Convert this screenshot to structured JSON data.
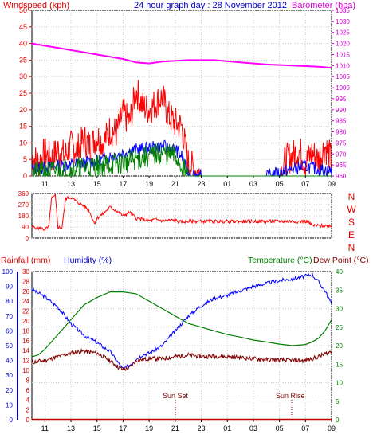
{
  "header": {
    "wind_label": "Windspeed (kph)",
    "title": "24 hour graph day : 28 November 2012",
    "baro_label": "Barometer (hpa)"
  },
  "colors": {
    "wind_axis": "#e00000",
    "baro_axis": "#d000d0",
    "gust": "#ff0000",
    "wind_blue": "#0000ff",
    "wind_green": "#008000",
    "baro_line": "#ff00ff",
    "humidity": "#0000ff",
    "temperature": "#008000",
    "dewpoint": "#800000",
    "rain_axis": "#0000cc"
  },
  "x_ticks": [
    "11",
    "13",
    "15",
    "17",
    "19",
    "21",
    "23",
    "01",
    "03",
    "05",
    "07",
    "09"
  ],
  "direction_labels": [
    "N",
    "W",
    "S",
    "E",
    "N"
  ],
  "bottom_header": {
    "rain_label": "Rainfall (mm)",
    "humidity_label": "Humidity (%)",
    "temp_label": "Temperature (°C)",
    "dew_label": "Dew Point (°C)"
  },
  "annotations": {
    "sunset": "Sun Set",
    "sunrise": "Sun Rise"
  },
  "chart_data": [
    {
      "type": "line",
      "title": "24 hour graph day : 28 November 2012",
      "ylabel": "Windspeed (kph)",
      "ylim": [
        0,
        50
      ],
      "y_ticks": [
        0,
        5,
        10,
        15,
        20,
        25,
        30,
        35,
        40,
        45,
        50
      ],
      "y2label": "Barometer (hpa)",
      "y2lim": [
        960,
        1035
      ],
      "y2_ticks": [
        960,
        965,
        970,
        975,
        980,
        985,
        990,
        995,
        1000,
        1005,
        1010,
        1015,
        1020,
        1025,
        1030,
        1035
      ],
      "x_range_hours": [
        10,
        33
      ],
      "series": [
        {
          "name": "Barometer (hpa)",
          "axis": "y2",
          "x": [
            10,
            11,
            13,
            15,
            17,
            18,
            19,
            20,
            22,
            24,
            26,
            28,
            30,
            32,
            33
          ],
          "values": [
            1020,
            1019,
            1017,
            1015,
            1013,
            1011.5,
            1011,
            1011.8,
            1012.5,
            1012.5,
            1011.5,
            1010.5,
            1010,
            1009.5,
            1009
          ]
        },
        {
          "name": "Gust",
          "axis": "y",
          "x": [
            10,
            10.5,
            11,
            11.5,
            12,
            12.5,
            13,
            13.5,
            14,
            14.5,
            15,
            15.5,
            16,
            16.5,
            17,
            17.5,
            18,
            18.5,
            19,
            19.5,
            20,
            20.5,
            21,
            21.5,
            22,
            23,
            24,
            26,
            28,
            29,
            29.5,
            30,
            30.5,
            31,
            31.5,
            32,
            32.5,
            33
          ],
          "values": [
            6,
            4,
            7,
            5,
            8,
            6,
            9,
            8,
            11,
            9,
            12,
            10,
            14,
            13,
            19,
            16,
            26,
            21,
            20,
            22,
            24,
            18,
            16,
            15,
            4,
            0,
            0,
            0,
            0,
            0,
            5,
            6,
            8,
            4,
            7,
            5,
            9,
            5
          ]
        },
        {
          "name": "Average",
          "axis": "y",
          "x": [
            10,
            11,
            12,
            13,
            14,
            15,
            16,
            17,
            18,
            19,
            20,
            21,
            21.5,
            22,
            23,
            28,
            29,
            30,
            31,
            32,
            33
          ],
          "values": [
            2,
            2.5,
            3,
            3.5,
            4,
            4.5,
            6,
            7,
            8,
            8.5,
            9,
            8,
            6,
            1,
            0,
            0,
            1,
            2,
            3,
            2,
            1.5
          ]
        },
        {
          "name": "Speed",
          "axis": "y",
          "x": [
            10,
            11,
            12,
            13,
            14,
            15,
            16,
            17,
            18,
            19,
            20,
            21,
            21.5,
            22,
            23,
            33
          ],
          "values": [
            1,
            1.2,
            1.5,
            2,
            2.5,
            3,
            3.5,
            4,
            5,
            6,
            7,
            6,
            3,
            0,
            0,
            0
          ]
        }
      ]
    },
    {
      "type": "line",
      "ylabel": "Wind direction",
      "ylim": [
        0,
        360
      ],
      "y_ticks": [
        0,
        45,
        90,
        135,
        180,
        225,
        270,
        315,
        360
      ],
      "x_range_hours": [
        10,
        33
      ],
      "series": [
        {
          "name": "Direction",
          "x": [
            10,
            10.5,
            11,
            11.3,
            11.5,
            11.8,
            12,
            12.3,
            12.6,
            13,
            13.5,
            14,
            14.4,
            14.8,
            15,
            15.5,
            16,
            16.5,
            17,
            17.5,
            18,
            18.5,
            19,
            19.5,
            20,
            21,
            21.3,
            22,
            24,
            26,
            28,
            30,
            31.2,
            31.5,
            32,
            33
          ],
          "values": [
            90,
            80,
            70,
            90,
            320,
            340,
            90,
            80,
            320,
            330,
            290,
            260,
            220,
            120,
            160,
            200,
            250,
            220,
            180,
            210,
            160,
            150,
            140,
            150,
            140,
            145,
            130,
            135,
            135,
            135,
            135,
            135,
            135,
            100,
            100,
            100
          ]
        }
      ]
    },
    {
      "type": "line",
      "ylabel": "Temperature (°C)",
      "ylim": [
        0,
        40
      ],
      "y_ticks": [
        0,
        5,
        10,
        15,
        20,
        25,
        30,
        35,
        40
      ],
      "y_left_label": "Rainfall (mm)",
      "y_left_lim": [
        0,
        30
      ],
      "y_left_ticks": [
        0,
        2,
        4,
        6,
        8,
        10,
        12,
        14,
        16,
        18,
        20,
        22,
        24,
        26,
        28,
        30
      ],
      "y_hum_label": "Humidity (%)",
      "y_hum_lim": [
        0,
        100
      ],
      "y_hum_ticks": [
        0,
        10,
        20,
        30,
        40,
        50,
        60,
        70,
        80,
        90,
        100
      ],
      "x_range_hours": [
        10,
        33
      ],
      "series": [
        {
          "name": "Humidity (%)",
          "axis": "humidity",
          "x": [
            10,
            11,
            12,
            13,
            14,
            15,
            16,
            17,
            17.5,
            18,
            18.5,
            19,
            20,
            21,
            22,
            23,
            24,
            25,
            26,
            27,
            28,
            29,
            30,
            31,
            31.5,
            32,
            32.5,
            33
          ],
          "values": [
            88,
            83,
            76,
            65,
            57,
            52,
            46,
            34,
            37,
            41,
            44,
            45,
            50,
            60,
            70,
            77,
            82,
            84,
            87,
            90,
            92,
            94,
            95,
            97,
            98,
            93,
            87,
            78
          ]
        },
        {
          "name": "Temperature (°C)",
          "axis": "temperature",
          "x": [
            10,
            10.5,
            11,
            12,
            13,
            14,
            15,
            16,
            17,
            18,
            19,
            20,
            21,
            22,
            23,
            24,
            25,
            26,
            27,
            28,
            29,
            30,
            31,
            31.5,
            32,
            32.5,
            33
          ],
          "values": [
            17,
            17.5,
            19,
            23,
            27,
            31,
            33,
            34.5,
            34.5,
            34,
            32,
            30,
            28,
            26,
            25,
            24,
            23,
            22.3,
            21.5,
            21,
            20.4,
            20,
            20.3,
            21,
            22,
            24,
            27
          ]
        },
        {
          "name": "Dew Point (°C)",
          "axis": "temperature",
          "x": [
            10,
            11,
            12,
            13,
            14,
            15,
            15.5,
            16,
            16.5,
            17,
            17.5,
            18,
            19,
            20,
            21,
            22,
            23,
            24,
            26,
            28,
            30,
            31,
            32,
            33
          ],
          "values": [
            15.5,
            16,
            17,
            18,
            18.5,
            18,
            17,
            16,
            14.5,
            13.5,
            14,
            16,
            16.5,
            16.5,
            17,
            17.5,
            17,
            17.2,
            16.8,
            16.2,
            16,
            16,
            17,
            18.5
          ]
        },
        {
          "name": "Rainfall (mm)",
          "axis": "rain",
          "x": [
            10,
            33
          ],
          "values": [
            0,
            0
          ]
        }
      ]
    }
  ]
}
